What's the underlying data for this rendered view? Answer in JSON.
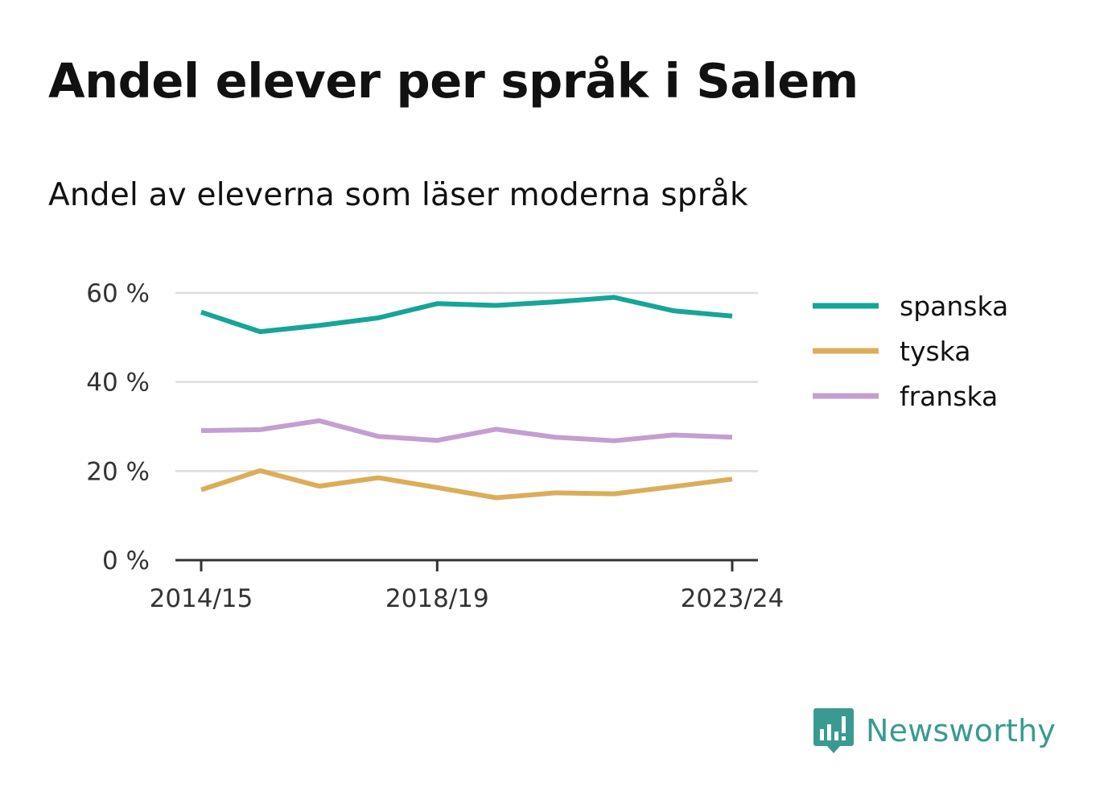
{
  "title": "Andel elever per språk i Salem",
  "subtitle": "Andel av eleverna som läser moderna språk",
  "brand": {
    "name": "Newsworthy",
    "icon": "newsworthy-logo-icon",
    "color": "#3a9a91"
  },
  "chart_data": {
    "type": "line",
    "x": [
      "2014/15",
      "2015/16",
      "2016/17",
      "2017/18",
      "2018/19",
      "2019/20",
      "2020/21",
      "2021/22",
      "2022/23",
      "2023/24"
    ],
    "x_tick_labels": [
      "2014/15",
      "2018/19",
      "2023/24"
    ],
    "y_ticks": [
      0,
      20,
      40,
      60
    ],
    "y_tick_labels": [
      "0 %",
      "20 %",
      "40 %",
      "60 %"
    ],
    "ylim": [
      0,
      60
    ],
    "grid": true,
    "legend_position": "right",
    "series": [
      {
        "name": "spanska",
        "color": "#16a596",
        "values": [
          55.7,
          51.3,
          52.7,
          54.4,
          57.6,
          57.2,
          58.0,
          59.0,
          56.0,
          54.8
        ]
      },
      {
        "name": "tyska",
        "color": "#dcad59",
        "values": [
          15.8,
          20.1,
          16.6,
          18.5,
          16.3,
          14.0,
          15.1,
          14.9,
          16.5,
          18.2
        ]
      },
      {
        "name": "franska",
        "color": "#c39fd0",
        "values": [
          29.1,
          29.3,
          31.3,
          27.8,
          26.9,
          29.4,
          27.6,
          26.8,
          28.1,
          27.6
        ]
      }
    ]
  }
}
